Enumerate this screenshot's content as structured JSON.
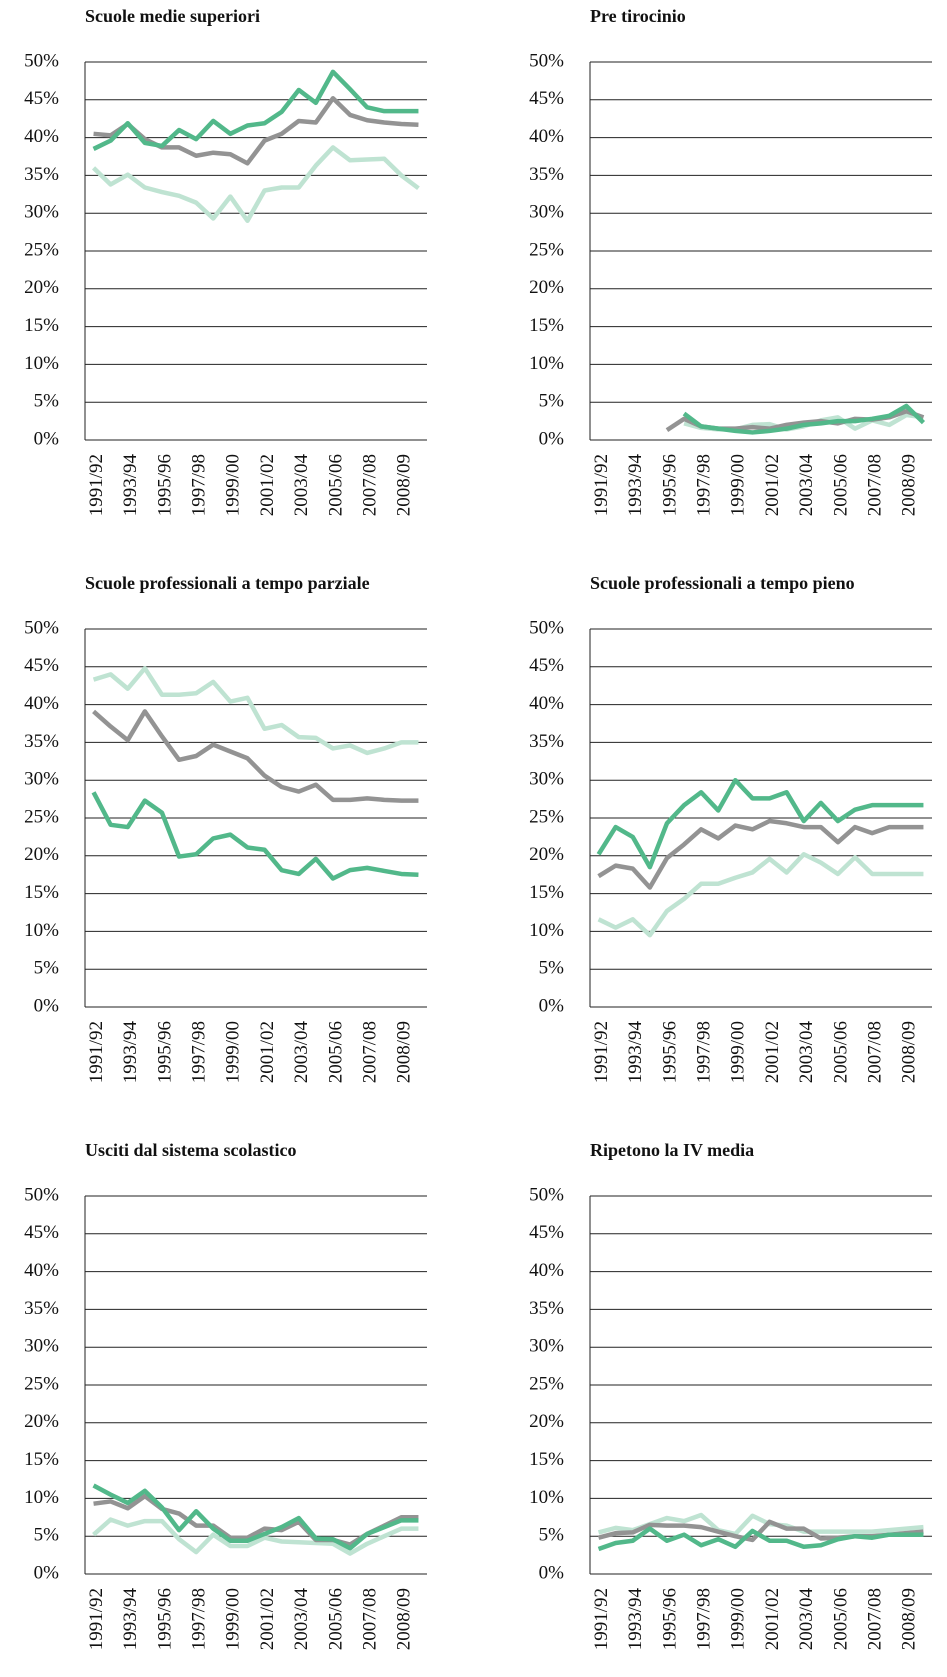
{
  "chart_data": [
    {
      "type": "line",
      "title": "Scuole medie superiori",
      "categories": [
        "1991/92",
        null,
        "1993/94",
        null,
        "1995/96",
        null,
        "1997/98",
        null,
        "1999/00",
        null,
        "2001/02",
        null,
        "2003/04",
        null,
        "2005/06",
        null,
        "2007/08",
        null,
        "2008/09",
        null
      ],
      "ylim": [
        0,
        50
      ],
      "yticks": [
        {
          "value": 0,
          "label": "0%"
        },
        {
          "value": 5,
          "label": "5%"
        },
        {
          "value": 10,
          "label": "10%"
        },
        {
          "value": 15,
          "label": "15%"
        },
        {
          "value": 20,
          "label": "20%"
        },
        {
          "value": 25,
          "label": "25%"
        },
        {
          "value": 30,
          "label": "30%"
        },
        {
          "value": 35,
          "label": "35%"
        },
        {
          "value": 40,
          "label": "40%"
        },
        {
          "value": 45,
          "label": "45%"
        },
        {
          "value": 50,
          "label": "50%"
        }
      ],
      "grid": true,
      "series": [
        {
          "color": "#bfe3d2",
          "values": [
            36.0,
            33.8,
            35.1,
            33.4,
            32.8,
            32.3,
            31.4,
            29.3,
            32.2,
            29.0,
            33.0,
            33.4,
            33.4,
            36.3,
            38.7,
            37.0,
            37.1,
            37.2,
            35.0,
            33.3
          ]
        },
        {
          "color": "#939393",
          "values": [
            40.5,
            40.3,
            41.8,
            39.8,
            38.7,
            38.7,
            37.6,
            38.0,
            37.8,
            36.6,
            39.6,
            40.5,
            42.2,
            42.0,
            45.2,
            43.0,
            42.3,
            42.0,
            41.8,
            41.7
          ]
        },
        {
          "color": "#52b88a",
          "values": [
            38.5,
            39.6,
            41.9,
            39.3,
            38.9,
            41.0,
            39.8,
            42.2,
            40.5,
            41.6,
            41.9,
            43.4,
            46.3,
            44.6,
            48.7,
            46.4,
            44.0,
            43.5,
            43.5,
            43.5
          ]
        }
      ]
    },
    {
      "type": "line",
      "title": "Pre tirocinio",
      "categories": [
        "1991/92",
        null,
        "1993/94",
        null,
        "1995/96",
        null,
        "1997/98",
        null,
        "1999/00",
        null,
        "2001/02",
        null,
        "2003/04",
        null,
        "2005/06",
        null,
        "2007/08",
        null,
        "2008/09",
        null
      ],
      "ylim": [
        0,
        50
      ],
      "yticks": [
        {
          "value": 0,
          "label": "0%"
        },
        {
          "value": 5,
          "label": "5%"
        },
        {
          "value": 10,
          "label": "10%"
        },
        {
          "value": 15,
          "label": "15%"
        },
        {
          "value": 20,
          "label": "20%"
        },
        {
          "value": 25,
          "label": "25%"
        },
        {
          "value": 30,
          "label": "30%"
        },
        {
          "value": 35,
          "label": "35%"
        },
        {
          "value": 40,
          "label": "40%"
        },
        {
          "value": 45,
          "label": "45%"
        },
        {
          "value": 50,
          "label": "50%"
        }
      ],
      "grid": true,
      "series": [
        {
          "color": "#bfe3d2",
          "values": [
            null,
            null,
            null,
            null,
            null,
            2.2,
            1.6,
            1.4,
            1.4,
            2.0,
            2.1,
            1.4,
            1.8,
            2.6,
            3.0,
            1.5,
            2.6,
            2.0,
            3.3,
            3.0
          ]
        },
        {
          "color": "#939393",
          "values": [
            null,
            null,
            null,
            null,
            1.3,
            2.8,
            1.8,
            1.5,
            1.5,
            1.7,
            1.5,
            2.0,
            2.3,
            2.5,
            2.2,
            2.8,
            2.7,
            3.0,
            3.8,
            3.0
          ]
        },
        {
          "color": "#52b88a",
          "values": [
            null,
            null,
            null,
            null,
            null,
            3.5,
            1.8,
            1.5,
            1.2,
            1.0,
            1.2,
            1.5,
            2.0,
            2.2,
            2.5,
            2.5,
            2.8,
            3.2,
            4.5,
            2.3
          ]
        }
      ]
    },
    {
      "type": "line",
      "title": "Scuole professionali a tempo parziale",
      "categories": [
        "1991/92",
        null,
        "1993/94",
        null,
        "1995/96",
        null,
        "1997/98",
        null,
        "1999/00",
        null,
        "2001/02",
        null,
        "2003/04",
        null,
        "2005/06",
        null,
        "2007/08",
        null,
        "2008/09",
        null
      ],
      "ylim": [
        0,
        50
      ],
      "yticks": [
        {
          "value": 0,
          "label": "0%"
        },
        {
          "value": 5,
          "label": "5%"
        },
        {
          "value": 10,
          "label": "10%"
        },
        {
          "value": 15,
          "label": "15%"
        },
        {
          "value": 20,
          "label": "20%"
        },
        {
          "value": 25,
          "label": "25%"
        },
        {
          "value": 30,
          "label": "30%"
        },
        {
          "value": 35,
          "label": "35%"
        },
        {
          "value": 40,
          "label": "40%"
        },
        {
          "value": 45,
          "label": "45%"
        },
        {
          "value": 50,
          "label": "50%"
        }
      ],
      "grid": true,
      "series": [
        {
          "color": "#bfe3d2",
          "values": [
            43.3,
            44.0,
            42.1,
            44.8,
            41.3,
            41.3,
            41.5,
            43.0,
            40.4,
            40.9,
            36.8,
            37.3,
            35.7,
            35.6,
            34.2,
            34.6,
            33.6,
            34.2,
            35.0,
            35.0
          ]
        },
        {
          "color": "#939393",
          "values": [
            39.1,
            37.1,
            35.3,
            39.1,
            35.8,
            32.7,
            33.2,
            34.7,
            33.8,
            32.9,
            30.6,
            29.1,
            28.5,
            29.4,
            27.4,
            27.4,
            27.6,
            27.4,
            27.3,
            27.3
          ]
        },
        {
          "color": "#52b88a",
          "values": [
            28.4,
            24.1,
            23.8,
            27.3,
            25.7,
            19.9,
            20.2,
            22.3,
            22.8,
            21.1,
            20.8,
            18.1,
            17.6,
            19.6,
            17.0,
            18.1,
            18.4,
            18.0,
            17.6,
            17.5
          ]
        }
      ]
    },
    {
      "type": "line",
      "title": "Scuole professionali a tempo pieno",
      "categories": [
        "1991/92",
        null,
        "1993/94",
        null,
        "1995/96",
        null,
        "1997/98",
        null,
        "1999/00",
        null,
        "2001/02",
        null,
        "2003/04",
        null,
        "2005/06",
        null,
        "2007/08",
        null,
        "2008/09",
        null
      ],
      "ylim": [
        0,
        50
      ],
      "yticks": [
        {
          "value": 0,
          "label": "0%"
        },
        {
          "value": 5,
          "label": "5%"
        },
        {
          "value": 10,
          "label": "10%"
        },
        {
          "value": 15,
          "label": "15%"
        },
        {
          "value": 20,
          "label": "20%"
        },
        {
          "value": 25,
          "label": "25%"
        },
        {
          "value": 30,
          "label": "30%"
        },
        {
          "value": 35,
          "label": "35%"
        },
        {
          "value": 40,
          "label": "40%"
        },
        {
          "value": 45,
          "label": "45%"
        },
        {
          "value": 50,
          "label": "50%"
        }
      ],
      "grid": true,
      "series": [
        {
          "color": "#bfe3d2",
          "values": [
            11.6,
            10.5,
            11.6,
            9.5,
            12.7,
            14.3,
            16.3,
            16.3,
            17.1,
            17.8,
            19.6,
            17.8,
            20.2,
            19.1,
            17.6,
            19.8,
            17.6,
            17.6,
            17.6,
            17.6
          ]
        },
        {
          "color": "#939393",
          "values": [
            17.3,
            18.7,
            18.3,
            15.8,
            19.7,
            21.5,
            23.5,
            22.3,
            24.0,
            23.5,
            24.6,
            24.3,
            23.8,
            23.8,
            21.8,
            23.8,
            23.0,
            23.8,
            23.8,
            23.8
          ]
        },
        {
          "color": "#52b88a",
          "values": [
            20.2,
            23.8,
            22.5,
            18.5,
            24.3,
            26.7,
            28.4,
            26.0,
            30.0,
            27.6,
            27.6,
            28.4,
            24.6,
            27.0,
            24.6,
            26.1,
            26.7,
            26.7,
            26.7,
            26.7
          ]
        }
      ]
    },
    {
      "type": "line",
      "title": "Usciti dal sistema scolastico",
      "categories": [
        "1991/92",
        null,
        "1993/94",
        null,
        "1995/96",
        null,
        "1997/98",
        null,
        "1999/00",
        null,
        "2001/02",
        null,
        "2003/04",
        null,
        "2005/06",
        null,
        "2007/08",
        null,
        "2008/09",
        null
      ],
      "ylim": [
        0,
        50
      ],
      "yticks": [
        {
          "value": 0,
          "label": "0%"
        },
        {
          "value": 5,
          "label": "5%"
        },
        {
          "value": 10,
          "label": "10%"
        },
        {
          "value": 15,
          "label": "15%"
        },
        {
          "value": 20,
          "label": "20%"
        },
        {
          "value": 25,
          "label": "25%"
        },
        {
          "value": 30,
          "label": "30%"
        },
        {
          "value": 35,
          "label": "35%"
        },
        {
          "value": 40,
          "label": "40%"
        },
        {
          "value": 45,
          "label": "45%"
        },
        {
          "value": 50,
          "label": "50%"
        }
      ],
      "grid": true,
      "series": [
        {
          "color": "#bfe3d2",
          "values": [
            5.2,
            7.2,
            6.4,
            7.0,
            7.0,
            4.6,
            2.9,
            5.2,
            3.7,
            3.7,
            4.8,
            4.3,
            4.2,
            4.1,
            4.0,
            2.7,
            4.0,
            5.0,
            6.0,
            6.0
          ]
        },
        {
          "color": "#939393",
          "values": [
            9.3,
            9.6,
            8.7,
            10.3,
            8.6,
            8.0,
            6.4,
            6.4,
            4.8,
            4.8,
            6.0,
            5.8,
            6.9,
            4.5,
            4.5,
            3.9,
            5.3,
            6.4,
            7.5,
            7.5
          ]
        },
        {
          "color": "#52b88a",
          "values": [
            11.7,
            10.5,
            9.4,
            11.0,
            8.8,
            5.8,
            8.3,
            6.0,
            4.4,
            4.4,
            5.3,
            6.2,
            7.4,
            4.7,
            4.6,
            3.4,
            5.3,
            6.2,
            7.1,
            7.1
          ]
        }
      ]
    },
    {
      "type": "line",
      "title": "Ripetono la IV media",
      "categories": [
        "1991/92",
        null,
        "1993/94",
        null,
        "1995/96",
        null,
        "1997/98",
        null,
        "1999/00",
        null,
        "2001/02",
        null,
        "2003/04",
        null,
        "2005/06",
        null,
        "2007/08",
        null,
        "2008/09",
        null
      ],
      "ylim": [
        0,
        50
      ],
      "yticks": [
        {
          "value": 0,
          "label": "0%"
        },
        {
          "value": 5,
          "label": "5%"
        },
        {
          "value": 10,
          "label": "10%"
        },
        {
          "value": 15,
          "label": "15%"
        },
        {
          "value": 20,
          "label": "20%"
        },
        {
          "value": 25,
          "label": "25%"
        },
        {
          "value": 30,
          "label": "30%"
        },
        {
          "value": 35,
          "label": "35%"
        },
        {
          "value": 40,
          "label": "40%"
        },
        {
          "value": 45,
          "label": "45%"
        },
        {
          "value": 50,
          "label": "50%"
        }
      ],
      "grid": true,
      "series": [
        {
          "color": "#bfe3d2",
          "values": [
            5.5,
            6.1,
            5.8,
            6.6,
            7.4,
            7.0,
            7.8,
            5.8,
            5.3,
            7.7,
            6.6,
            6.4,
            5.6,
            5.6,
            5.6,
            5.6,
            5.6,
            5.8,
            6.0,
            6.2
          ]
        },
        {
          "color": "#939393",
          "values": [
            4.8,
            5.4,
            5.5,
            6.5,
            6.4,
            6.4,
            6.2,
            5.6,
            5.0,
            4.5,
            6.9,
            6.0,
            6.0,
            4.7,
            4.8,
            5.0,
            5.0,
            5.2,
            5.4,
            5.6
          ]
        },
        {
          "color": "#52b88a",
          "values": [
            3.3,
            4.1,
            4.4,
            6.0,
            4.4,
            5.2,
            3.8,
            4.6,
            3.6,
            5.7,
            4.4,
            4.4,
            3.6,
            3.8,
            4.6,
            5.0,
            4.8,
            5.2,
            5.2,
            5.2
          ]
        }
      ]
    }
  ]
}
